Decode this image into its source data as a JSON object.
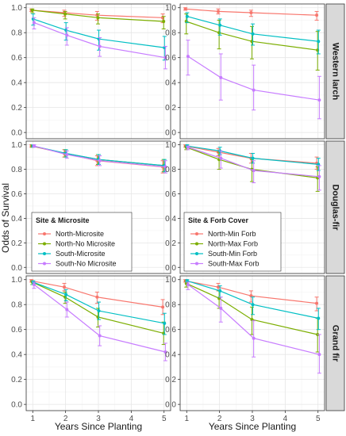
{
  "chart_data": {
    "type": "line",
    "x_label": "Years Since Planting",
    "y_label": "Odds of Survival",
    "x_ticks": [
      1,
      2,
      3,
      4,
      5
    ],
    "y_ticks": [
      0.0,
      0.2,
      0.4,
      0.6,
      0.8,
      1.0
    ],
    "y_tick_labels": [
      "0.0",
      "0.2",
      "0.4",
      "0.6",
      "0.8",
      "1.0"
    ],
    "xlim": [
      0.8,
      5.2
    ],
    "ylim": [
      -0.05,
      1.03
    ],
    "rows": [
      "Western larch",
      "Douglas-fir",
      "Grand fir"
    ],
    "columns": [
      "microsite",
      "forb"
    ],
    "colors": [
      "#F8766D",
      "#7CAE00",
      "#00BFC4",
      "#C77CFF"
    ],
    "legends": {
      "microsite": {
        "title": "Site & Microsite",
        "entries": [
          "North-Microsite",
          "North-No Microsite",
          "South-Microsite",
          "South-No Microsite"
        ]
      },
      "forb": {
        "title": "Site & Forb Cover",
        "entries": [
          "North-Min Forb",
          "North-Max Forb",
          "South-Min Forb",
          "South-Max Forb"
        ]
      }
    },
    "x": [
      1,
      2,
      3,
      5
    ],
    "panels": [
      {
        "row": "Western larch",
        "column": "microsite",
        "series": [
          {
            "name": "North-Microsite",
            "values": [
              0.98,
              0.96,
              0.94,
              0.92
            ],
            "lo": [
              0.97,
              0.93,
              0.9,
              0.88
            ],
            "hi": [
              0.99,
              0.98,
              0.97,
              0.95
            ]
          },
          {
            "name": "North-No Microsite",
            "values": [
              0.98,
              0.95,
              0.92,
              0.89
            ],
            "lo": [
              0.96,
              0.91,
              0.87,
              0.83
            ],
            "hi": [
              0.99,
              0.97,
              0.95,
              0.93
            ]
          },
          {
            "name": "South-Microsite",
            "values": [
              0.91,
              0.82,
              0.75,
              0.68
            ],
            "lo": [
              0.86,
              0.74,
              0.66,
              0.58
            ],
            "hi": [
              0.95,
              0.88,
              0.82,
              0.77
            ]
          },
          {
            "name": "South-No Microsite",
            "values": [
              0.88,
              0.78,
              0.69,
              0.6
            ],
            "lo": [
              0.83,
              0.7,
              0.61,
              0.51
            ],
            "hi": [
              0.92,
              0.84,
              0.76,
              0.69
            ]
          }
        ]
      },
      {
        "row": "Western larch",
        "column": "forb",
        "series": [
          {
            "name": "North-Min Forb",
            "values": [
              0.99,
              0.97,
              0.96,
              0.94
            ],
            "lo": [
              0.98,
              0.95,
              0.93,
              0.9
            ],
            "hi": [
              1.0,
              0.99,
              0.98,
              0.97
            ]
          },
          {
            "name": "North-Max Forb",
            "values": [
              0.89,
              0.8,
              0.73,
              0.66
            ],
            "lo": [
              0.79,
              0.67,
              0.59,
              0.5
            ],
            "hi": [
              0.95,
              0.9,
              0.85,
              0.81
            ]
          },
          {
            "name": "South-Min Forb",
            "values": [
              0.93,
              0.86,
              0.79,
              0.73
            ],
            "lo": [
              0.88,
              0.78,
              0.7,
              0.63
            ],
            "hi": [
              0.96,
              0.91,
              0.87,
              0.82
            ]
          },
          {
            "name": "South-Max Forb",
            "values": [
              0.61,
              0.44,
              0.34,
              0.26
            ],
            "lo": [
              0.46,
              0.26,
              0.18,
              0.11
            ],
            "hi": [
              0.74,
              0.63,
              0.54,
              0.45
            ]
          }
        ]
      },
      {
        "row": "Douglas-fir",
        "column": "microsite",
        "series": [
          {
            "name": "North-Microsite",
            "values": [
              0.99,
              0.93,
              0.87,
              0.82
            ],
            "lo": [
              0.98,
              0.9,
              0.83,
              0.77
            ],
            "hi": [
              1.0,
              0.96,
              0.91,
              0.87
            ]
          },
          {
            "name": "North-No Microsite",
            "values": [
              0.99,
              0.93,
              0.88,
              0.83
            ],
            "lo": [
              0.98,
              0.9,
              0.84,
              0.78
            ],
            "hi": [
              1.0,
              0.96,
              0.92,
              0.88
            ]
          },
          {
            "name": "South-Microsite",
            "values": [
              0.99,
              0.93,
              0.88,
              0.83
            ],
            "lo": [
              0.98,
              0.9,
              0.84,
              0.78
            ],
            "hi": [
              1.0,
              0.96,
              0.92,
              0.88
            ]
          },
          {
            "name": "South-No Microsite",
            "values": [
              0.99,
              0.92,
              0.87,
              0.82
            ],
            "lo": [
              0.98,
              0.89,
              0.83,
              0.77
            ],
            "hi": [
              1.0,
              0.95,
              0.91,
              0.87
            ]
          }
        ]
      },
      {
        "row": "Douglas-fir",
        "column": "forb",
        "series": [
          {
            "name": "North-Min Forb",
            "values": [
              0.99,
              0.94,
              0.89,
              0.85
            ],
            "lo": [
              0.98,
              0.91,
              0.85,
              0.8
            ],
            "hi": [
              1.0,
              0.97,
              0.93,
              0.9
            ]
          },
          {
            "name": "North-Max Forb",
            "values": [
              0.98,
              0.88,
              0.8,
              0.73
            ],
            "lo": [
              0.96,
              0.8,
              0.7,
              0.62
            ],
            "hi": [
              0.99,
              0.94,
              0.88,
              0.82
            ]
          },
          {
            "name": "South-Min Forb",
            "values": [
              0.99,
              0.95,
              0.89,
              0.84
            ],
            "lo": [
              0.98,
              0.92,
              0.85,
              0.79
            ],
            "hi": [
              1.0,
              0.98,
              0.93,
              0.89
            ]
          },
          {
            "name": "South-Max Forb",
            "values": [
              0.98,
              0.89,
              0.79,
              0.74
            ],
            "lo": [
              0.96,
              0.81,
              0.69,
              0.63
            ],
            "hi": [
              0.99,
              0.95,
              0.87,
              0.83
            ]
          }
        ]
      },
      {
        "row": "Grand fir",
        "column": "microsite",
        "series": [
          {
            "name": "North-Microsite",
            "values": [
              0.99,
              0.94,
              0.86,
              0.78
            ],
            "lo": [
              0.98,
              0.91,
              0.81,
              0.72
            ],
            "hi": [
              1.0,
              0.97,
              0.9,
              0.84
            ]
          },
          {
            "name": "North-No Microsite",
            "values": [
              0.98,
              0.86,
              0.7,
              0.57
            ],
            "lo": [
              0.96,
              0.81,
              0.62,
              0.48
            ],
            "hi": [
              0.99,
              0.9,
              0.77,
              0.66
            ]
          },
          {
            "name": "South-Microsite",
            "values": [
              0.98,
              0.88,
              0.75,
              0.65
            ],
            "lo": [
              0.96,
              0.83,
              0.68,
              0.56
            ],
            "hi": [
              0.99,
              0.92,
              0.82,
              0.73
            ]
          },
          {
            "name": "South-No Microsite",
            "values": [
              0.96,
              0.76,
              0.55,
              0.42
            ],
            "lo": [
              0.93,
              0.7,
              0.47,
              0.35
            ],
            "hi": [
              0.98,
              0.82,
              0.63,
              0.49
            ]
          }
        ]
      },
      {
        "row": "Grand fir",
        "column": "forb",
        "series": [
          {
            "name": "North-Min Forb",
            "values": [
              0.99,
              0.94,
              0.87,
              0.81
            ],
            "lo": [
              0.98,
              0.91,
              0.82,
              0.75
            ],
            "hi": [
              1.0,
              0.97,
              0.91,
              0.86
            ]
          },
          {
            "name": "North-Max Forb",
            "values": [
              0.97,
              0.85,
              0.68,
              0.56
            ],
            "lo": [
              0.94,
              0.77,
              0.56,
              0.42
            ],
            "hi": [
              0.99,
              0.91,
              0.78,
              0.69
            ]
          },
          {
            "name": "South-Min Forb",
            "values": [
              0.99,
              0.91,
              0.8,
              0.69
            ],
            "lo": [
              0.98,
              0.86,
              0.72,
              0.6
            ],
            "hi": [
              1.0,
              0.95,
              0.86,
              0.77
            ]
          },
          {
            "name": "South-Max Forb",
            "values": [
              0.96,
              0.77,
              0.53,
              0.4
            ],
            "lo": [
              0.92,
              0.66,
              0.38,
              0.25
            ],
            "hi": [
              0.98,
              0.86,
              0.67,
              0.56
            ]
          }
        ]
      }
    ]
  }
}
